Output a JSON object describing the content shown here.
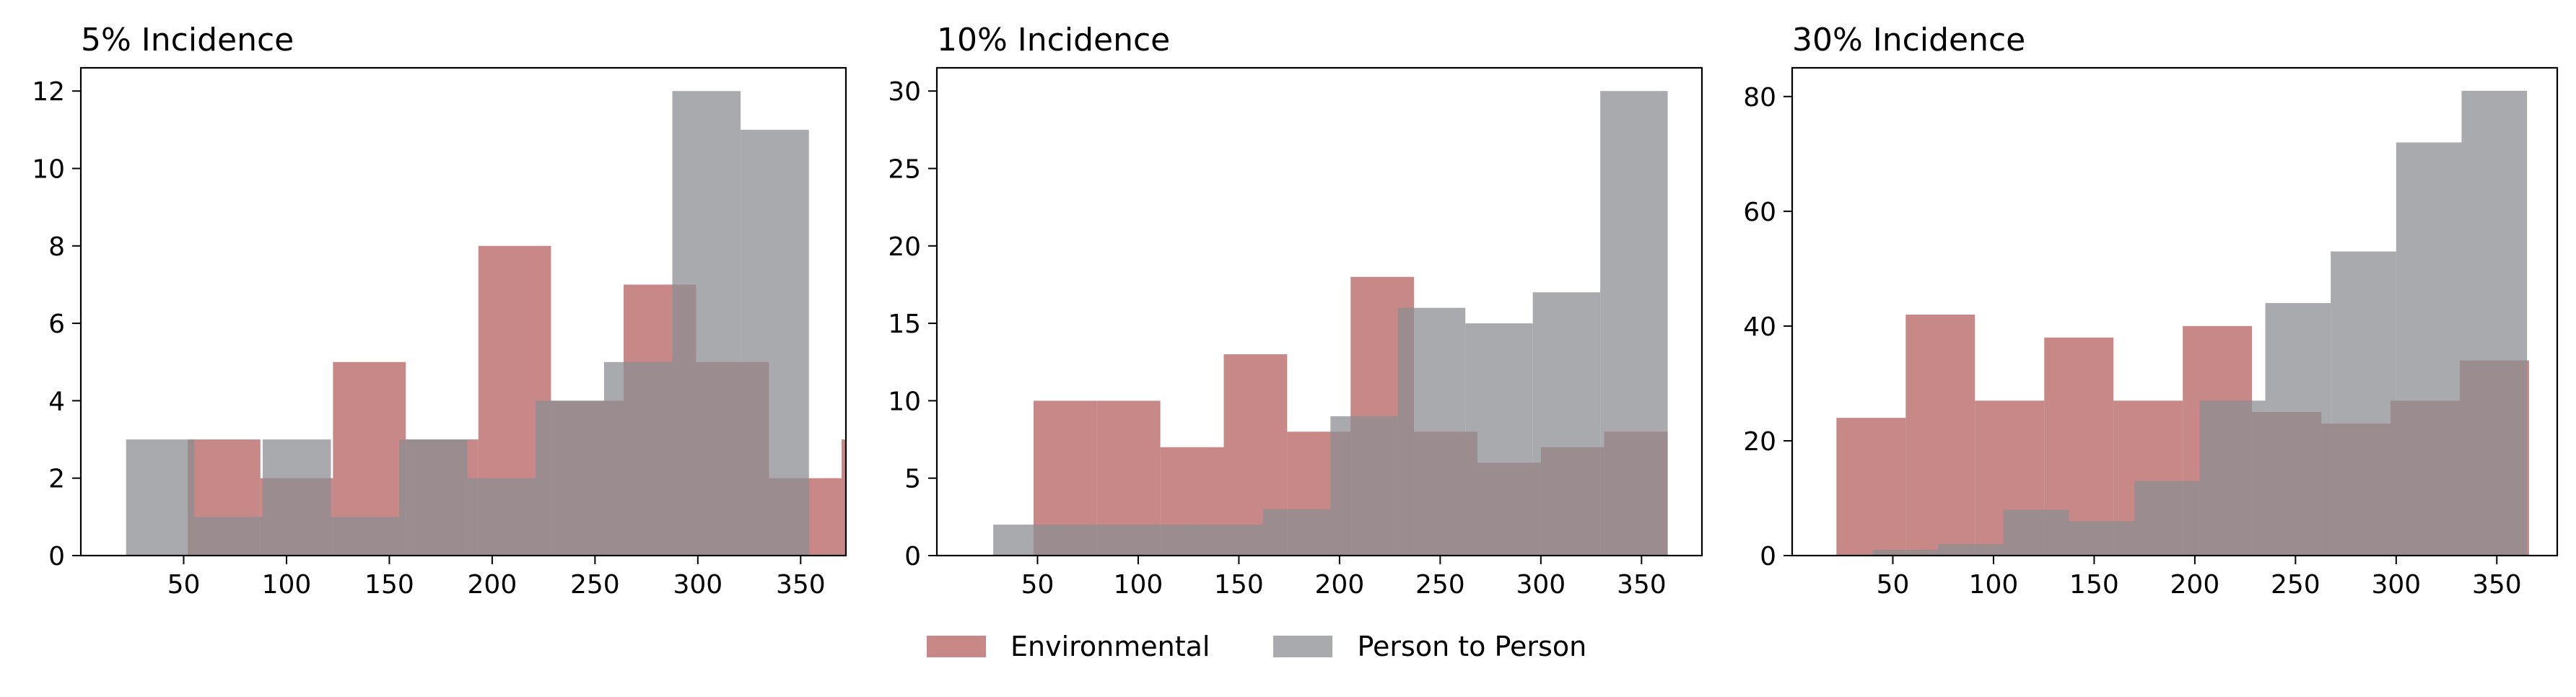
{
  "colors": {
    "environmental": "#b4605f",
    "person_to_person": "#8c8e91",
    "opacity": 0.75
  },
  "legend": {
    "environmental": "Environmental",
    "person_to_person": "Person to Person"
  },
  "chart_data": [
    {
      "type": "histogram",
      "title": "5% Incidence",
      "xlim": [
        0,
        372
      ],
      "ylim": [
        0,
        12.6
      ],
      "xticks": [
        50,
        100,
        150,
        200,
        250,
        300,
        350
      ],
      "yticks": [
        0,
        2,
        4,
        6,
        8,
        10,
        12
      ],
      "series": [
        {
          "name": "Environmental",
          "color_key": "environmental",
          "edges": [
            52,
            87.3,
            122.6,
            158.0,
            193.3,
            228.6,
            263.9,
            299.2,
            334.6,
            369.9,
            405.2
          ],
          "values": [
            3,
            2,
            5,
            3,
            8,
            4,
            7,
            5,
            2,
            3
          ]
        },
        {
          "name": "Person to Person",
          "color_key": "person_to_person",
          "edges": [
            22,
            55.2,
            88.4,
            121.6,
            154.8,
            188.0,
            221.2,
            254.4,
            287.6,
            320.8,
            354
          ],
          "values": [
            3,
            1,
            3,
            1,
            3,
            2,
            4,
            5,
            12,
            11
          ]
        }
      ]
    },
    {
      "type": "histogram",
      "title": "10% Incidence",
      "xlim": [
        0,
        380
      ],
      "ylim": [
        0,
        31.5
      ],
      "xticks": [
        50,
        100,
        150,
        200,
        250,
        300,
        350
      ],
      "yticks": [
        0,
        5,
        10,
        15,
        20,
        25,
        30
      ],
      "series": [
        {
          "name": "Environmental",
          "color_key": "environmental",
          "edges": [
            48,
            79.5,
            111.0,
            142.5,
            174.0,
            205.5,
            237.0,
            268.5,
            300.0,
            331.5,
            363
          ],
          "values": [
            10,
            10,
            7,
            13,
            8,
            18,
            8,
            6,
            7,
            8
          ]
        },
        {
          "name": "Person to Person",
          "color_key": "person_to_person",
          "edges": [
            28,
            61.5,
            95.0,
            128.5,
            162.0,
            195.5,
            229.0,
            262.5,
            296.0,
            329.5,
            363
          ],
          "values": [
            2,
            2,
            2,
            2,
            3,
            9,
            16,
            15,
            17,
            30
          ]
        }
      ]
    },
    {
      "type": "histogram",
      "title": "30% Incidence",
      "xlim": [
        0,
        380
      ],
      "ylim": [
        0,
        85
      ],
      "xticks": [
        50,
        100,
        150,
        200,
        250,
        300,
        350
      ],
      "yticks": [
        0,
        20,
        40,
        60,
        80
      ],
      "series": [
        {
          "name": "Environmental",
          "color_key": "environmental",
          "edges": [
            22,
            56.4,
            90.8,
            125.2,
            159.6,
            194.0,
            228.4,
            262.8,
            297.2,
            331.6,
            366
          ],
          "values": [
            24,
            42,
            27,
            38,
            27,
            40,
            25,
            23,
            27,
            34
          ]
        },
        {
          "name": "Person to Person",
          "color_key": "person_to_person",
          "edges": [
            40,
            72.5,
            105.0,
            137.5,
            170.0,
            202.5,
            235.0,
            267.5,
            300.0,
            332.5,
            365
          ],
          "values": [
            1,
            2,
            8,
            6,
            13,
            27,
            44,
            53,
            72,
            81
          ]
        }
      ]
    }
  ]
}
